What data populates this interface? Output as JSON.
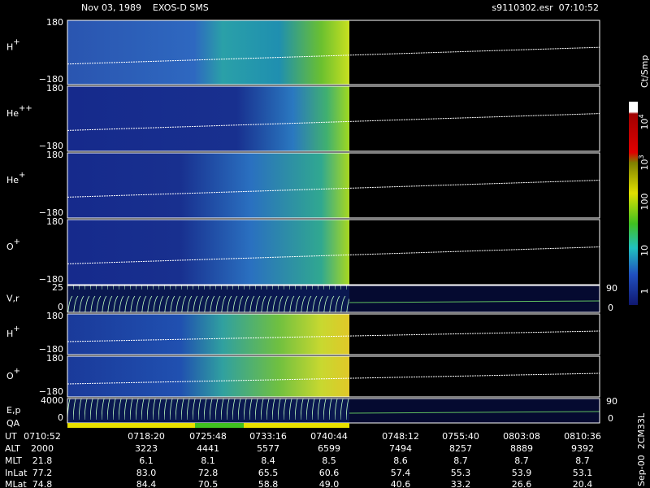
{
  "header": {
    "title": "Nov 03, 1989    EXOS-D SMS",
    "file": "s9110302.esr  07:10:52"
  },
  "panels": [
    {
      "label": "H",
      "charge": "+",
      "top": "180",
      "bottom": "−180"
    },
    {
      "label": "He",
      "charge": "++",
      "top": "180",
      "bottom": "−180"
    },
    {
      "label": "He",
      "charge": "+",
      "top": "180",
      "bottom": "−180"
    },
    {
      "label": "O",
      "charge": "+",
      "top": "180",
      "bottom": "−180"
    },
    {
      "label": "V,r",
      "top": "25",
      "bottom": "0",
      "right_top": "90",
      "right_bottom": "0"
    },
    {
      "label": "H",
      "charge": "+",
      "top": "180",
      "bottom": "−180"
    },
    {
      "label": "O",
      "charge": "+",
      "top": "180",
      "bottom": "−180"
    },
    {
      "label": "E,p",
      "top": "4000",
      "bottom": "0",
      "right_top": "90",
      "right_bottom": "0"
    }
  ],
  "qa_label": "QA",
  "color_bar": {
    "unit": "Ct/Smp",
    "labels": [
      {
        "base": "10",
        "exp": "4"
      },
      {
        "base": "10",
        "exp": "3"
      },
      "100",
      "10",
      "1"
    ]
  },
  "side_note": "Sep-00  2CM33L",
  "table": {
    "rows": [
      {
        "label": "UT",
        "values": [
          "0710:52",
          "0718:20",
          "0725:48",
          "0733:16",
          "0740:44",
          "0748:12",
          "0755:40",
          "0803:08",
          "0810:36"
        ]
      },
      {
        "label": "ALT",
        "values": [
          "2000",
          "3223",
          "4441",
          "5577",
          "6599",
          "7494",
          "8257",
          "8889",
          "9392"
        ]
      },
      {
        "label": "MLT",
        "values": [
          "21.8",
          "6.1",
          "8.1",
          "8.4",
          "8.5",
          "8.6",
          "8.7",
          "8.7",
          "8.7"
        ]
      },
      {
        "label": "InLat",
        "values": [
          "77.2",
          "83.0",
          "72.8",
          "65.5",
          "60.6",
          "57.4",
          "55.3",
          "53.9",
          "53.1"
        ]
      },
      {
        "label": "MLat",
        "values": [
          "74.8",
          "84.4",
          "70.5",
          "58.8",
          "49.0",
          "40.6",
          "33.2",
          "26.6",
          "20.4"
        ]
      }
    ]
  }
}
